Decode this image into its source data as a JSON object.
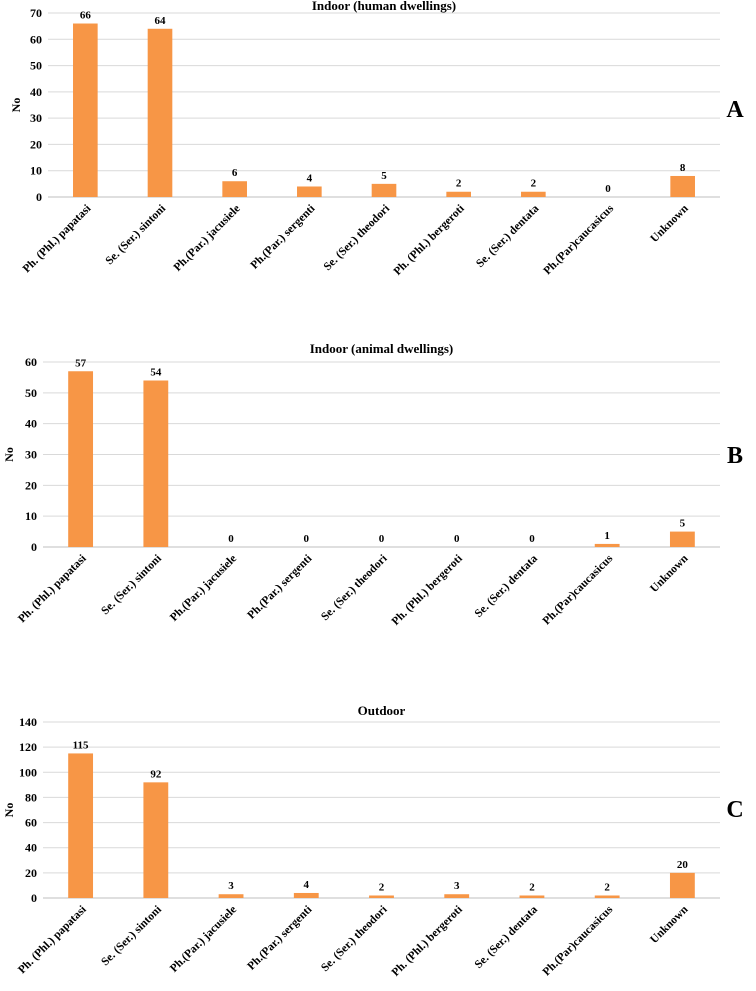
{
  "bar_color": "#F79646",
  "chart_data": [
    {
      "type": "bar",
      "panel": "A",
      "title": "Indoor (human dwellings)",
      "ylabel": "No",
      "xlabel": "",
      "ylim": [
        0,
        70
      ],
      "yticks": [
        0,
        10,
        20,
        30,
        40,
        50,
        60,
        70
      ],
      "grid": true,
      "categories": [
        "Ph. (Phl.)  papatasi",
        "Se. (Ser.)  sintoni",
        "Ph.(Par.) jacusiele",
        "Ph.(Par.) sergenti",
        "Se. (Ser.) theodori",
        "Ph. (Phl.) bergeroti",
        "Se. (Ser.) dentata",
        "Ph.(Par)caucasicus",
        "Unknown"
      ],
      "values": [
        66,
        64,
        6,
        4,
        5,
        2,
        2,
        0,
        8
      ]
    },
    {
      "type": "bar",
      "panel": "B",
      "title": "Indoor (animal dwellings)",
      "ylabel": "No",
      "xlabel": "",
      "ylim": [
        0,
        60
      ],
      "yticks": [
        0,
        10,
        20,
        30,
        40,
        50,
        60
      ],
      "grid": true,
      "categories": [
        "Ph. (Phl.)  papatasi",
        "Se. (Ser.)  sintoni",
        "Ph.(Par.) jacusiele",
        "Ph.(Par.) sergenti",
        "Se. (Ser.) theodori",
        "Ph. (Phl.) bergeroti",
        "Se. (Ser.) dentata",
        "Ph.(Par)caucasicus",
        "Unknown"
      ],
      "values": [
        57,
        54,
        0,
        0,
        0,
        0,
        0,
        1,
        5
      ]
    },
    {
      "type": "bar",
      "panel": "C",
      "title": "Outdoor",
      "ylabel": "No",
      "xlabel": "",
      "ylim": [
        0,
        140
      ],
      "yticks": [
        0,
        20,
        40,
        60,
        80,
        100,
        120,
        140
      ],
      "grid": true,
      "categories": [
        "Ph. (Phl.)  papatasi",
        "Se. (Ser.)  sintoni",
        "Ph.(Par.) jacusiele",
        "Ph.(Par.) sergenti",
        "Se. (Ser.) theodori",
        "Ph. (Phl.) bergeroti",
        "Se. (Ser.) dentata",
        "Ph.(Par)caucasicus",
        "Unknown"
      ],
      "values": [
        115,
        92,
        3,
        4,
        2,
        3,
        2,
        2,
        20
      ]
    }
  ]
}
